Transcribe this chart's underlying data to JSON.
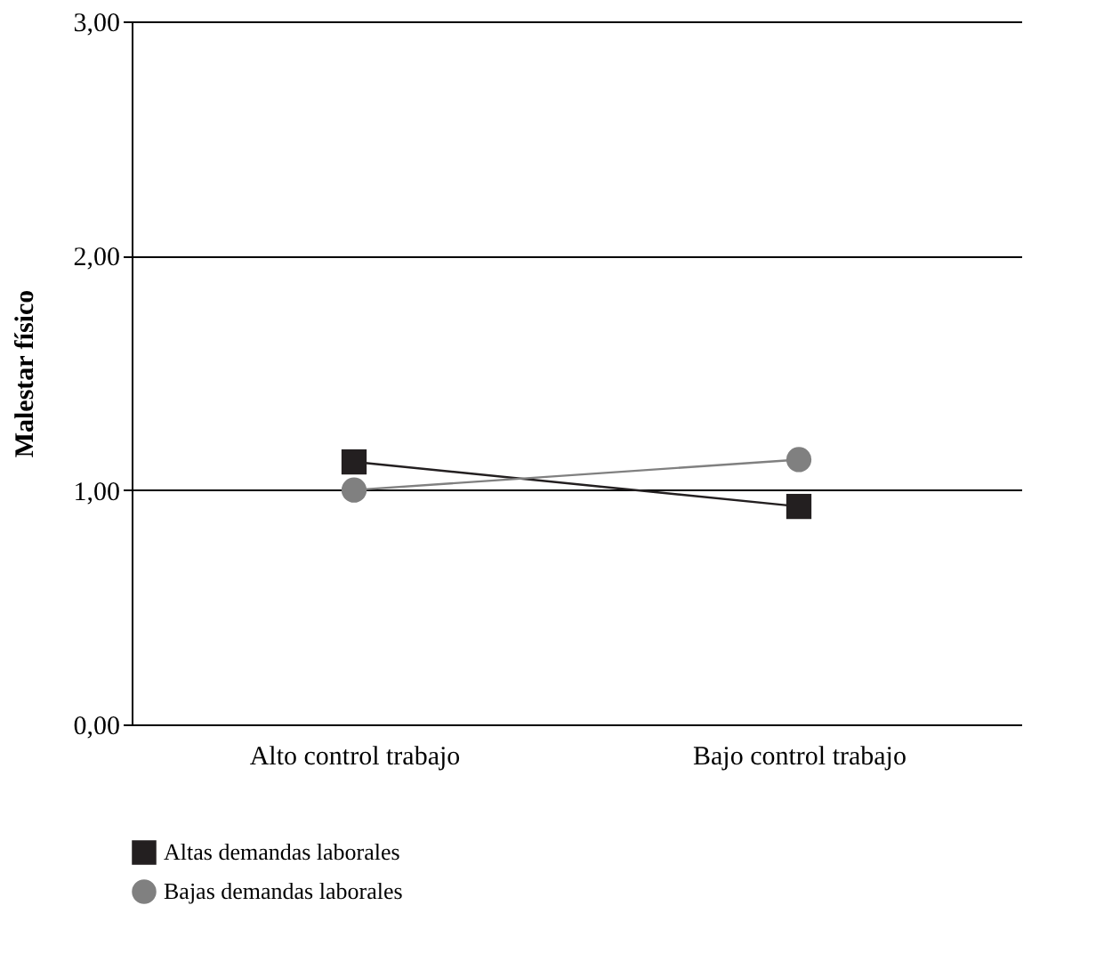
{
  "chart_data": {
    "type": "line",
    "ylabel": "Malestar físico",
    "categories": [
      "Alto control trabajo",
      "Bajo control trabajo"
    ],
    "series": [
      {
        "name": "Altas demandas laborales",
        "color": "#231f20",
        "marker": "square",
        "values": [
          1.12,
          0.93
        ]
      },
      {
        "name": "Bajas demandas laborales",
        "color": "#808080",
        "marker": "circle",
        "values": [
          1.0,
          1.13
        ]
      }
    ],
    "ylim": [
      0,
      3
    ],
    "yticks": [
      {
        "value": 0,
        "label": "0,00"
      },
      {
        "value": 1,
        "label": "1,00"
      },
      {
        "value": 2,
        "label": "2,00"
      },
      {
        "value": 3,
        "label": "3,00"
      }
    ],
    "grid": "y",
    "legend": "bottom",
    "line_style": "solid"
  }
}
